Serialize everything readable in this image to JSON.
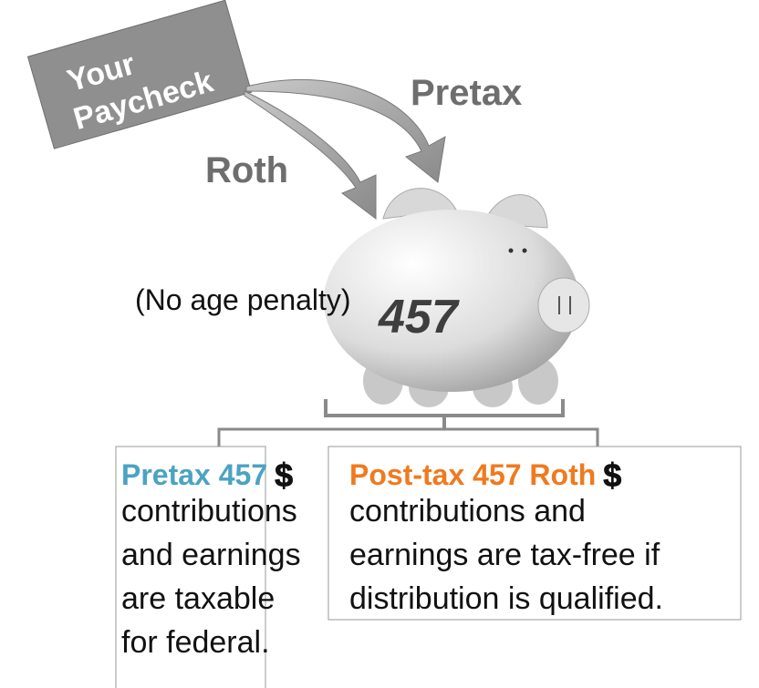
{
  "paycheck": {
    "lines": [
      "Your",
      "Paycheck"
    ]
  },
  "arrows": {
    "pretax": "Pretax",
    "roth": "Roth"
  },
  "piggy_bank": {
    "label": "457",
    "note": "(No age penalty)"
  },
  "boxes": [
    {
      "title": "Pretax 457",
      "symbol": "$",
      "lines": [
        "contributions",
        "and earnings",
        "are taxable",
        "for federal."
      ]
    },
    {
      "title": "Post-tax 457 Roth",
      "symbol": "$",
      "lines": [
        "contributions and",
        "earnings are tax-free if",
        "distribution is qualified."
      ]
    }
  ]
}
